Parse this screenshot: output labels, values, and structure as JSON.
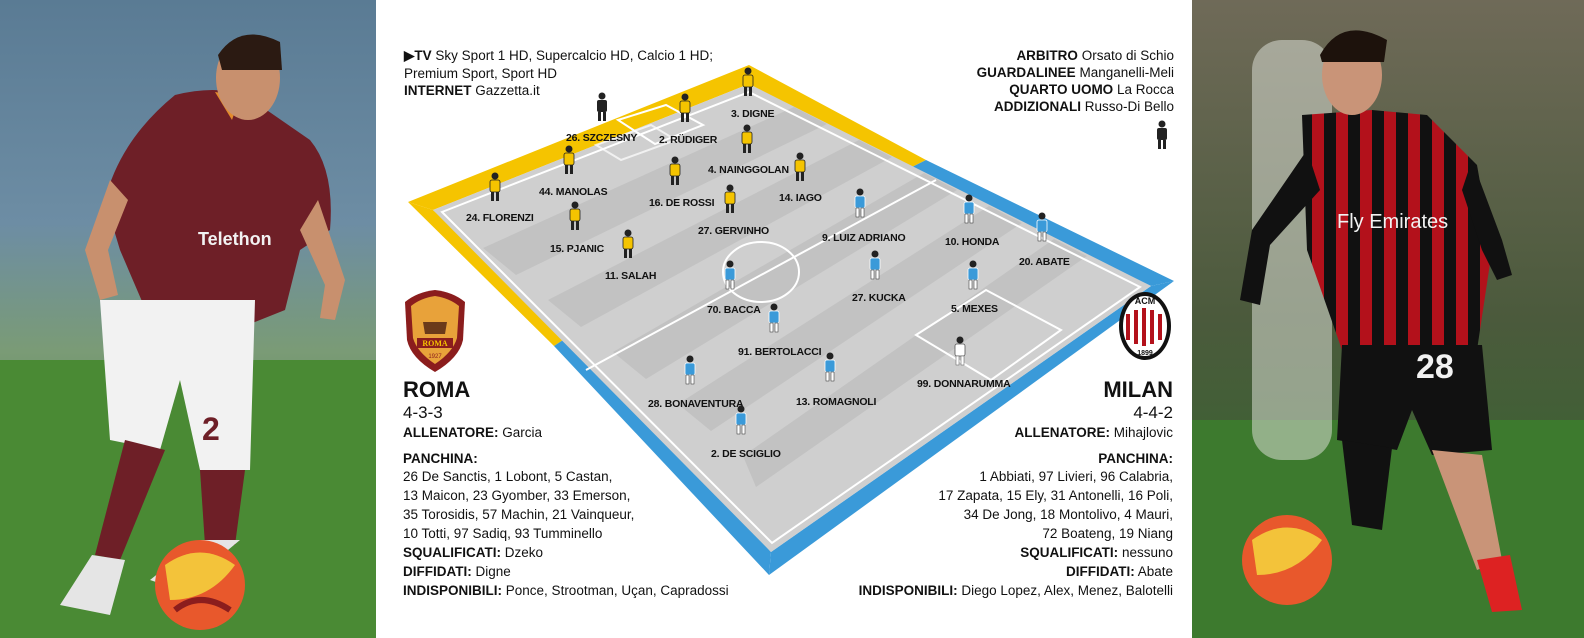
{
  "broadcast": {
    "tv_label": "TV",
    "tv_channels_1": "Sky Sport 1 HD, Supercalcio HD, Calcio 1 HD;",
    "tv_channels_2": "Premium Sport, Sport HD",
    "internet_label": "INTERNET",
    "internet_value": "Gazzetta.it"
  },
  "officials": [
    {
      "role": "ARBITRO",
      "name": "Orsato di Schio"
    },
    {
      "role": "GUARDALINEE",
      "name": "Manganelli-Meli"
    },
    {
      "role": "QUARTO UOMO",
      "name": "La Rocca"
    },
    {
      "role": "ADDIZIONALI",
      "name": "Russo-Di Bello"
    }
  ],
  "roma": {
    "name": "ROMA",
    "formation": "4-3-3",
    "crest_text": "ROMA",
    "crest_year": "1927",
    "coach_label": "ALLENATORE:",
    "coach": "Garcia",
    "bench_label": "PANCHINA:",
    "bench_lines": [
      "26 De Sanctis, 1 Lobont, 5 Castan,",
      "13 Maicon, 23 Gyomber, 33 Emerson,",
      "35 Torosidis, 57 Machin, 21 Vainqueur,",
      "10 Totti, 97 Sadiq, 93 Tumminello"
    ],
    "suspended_label": "SQUALIFICATI:",
    "suspended": "Dzeko",
    "warned_label": "DIFFIDATI:",
    "warned": "Digne",
    "unavailable_label": "INDISPONIBILI:",
    "unavailable": "Ponce, Strootman, Uçan, Capradossi",
    "color": "#f5c400",
    "lineup": [
      "26. SZCZESNY",
      "2. RÜDIGER",
      "3. DIGNE",
      "44. MANOLAS",
      "16. DE ROSSI",
      "4. NAINGGOLAN",
      "14. IAGO",
      "24. FLORENZI",
      "15. PJANIC",
      "27. GERVINHO",
      "11. SALAH"
    ]
  },
  "milan": {
    "name": "MILAN",
    "formation": "4-4-2",
    "crest_text": "ACM",
    "crest_year": "1899",
    "coach_label": "ALLENATORE:",
    "coach": "Mihajlovic",
    "bench_label": "PANCHINA:",
    "bench_lines": [
      "1 Abbiati, 97 Livieri, 96 Calabria,",
      "17 Zapata, 15 Ely, 31 Antonelli, 16 Poli,",
      "34 De Jong, 18 Montolivo, 4 Mauri,",
      "72 Boateng, 19 Niang"
    ],
    "suspended_label": "SQUALIFICATI:",
    "suspended": "nessuno",
    "warned_label": "DIFFIDATI:",
    "warned": "Abate",
    "unavailable_label": "INDISPONIBILI:",
    "unavailable": "Diego Lopez, Alex, Menez, Balotelli",
    "color": "#3a9ad9",
    "lineup": [
      "9. LUIZ ADRIANO",
      "10. HONDA",
      "20. ABATE",
      "27. KUCKA",
      "70. BACCA",
      "5. MEXES",
      "91. BERTOLACCI",
      "28. BONAVENTURA",
      "13. ROMAGNOLI",
      "99. DONNARUMMA",
      "2. DE SCIGLIO"
    ]
  },
  "photos": {
    "left_shirt_number": "2",
    "left_shirt_sponsor": "Telethon",
    "right_shirt_number": "28",
    "right_shirt_sponsor": "Fly Emirates"
  }
}
